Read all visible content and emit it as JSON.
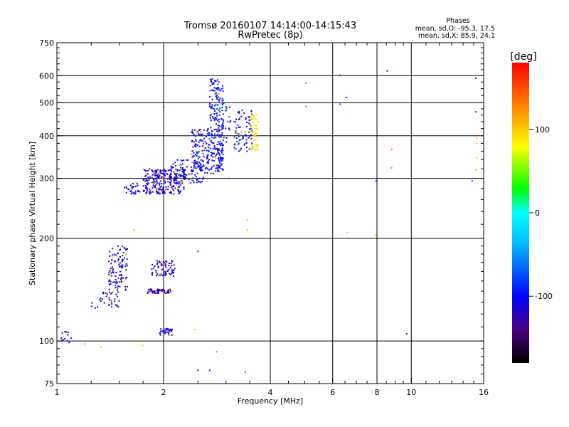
{
  "chart_data": {
    "type": "scatter",
    "title_line1": "Tromsø 20160107 14:14:00-14:15:43",
    "title_line2": "RwPretec (8p)",
    "xlabel": "Frequency [MHz]",
    "ylabel": "Stationary phase Virtual Height [km]",
    "x_scale": "log",
    "y_scale": "log",
    "xlim": [
      1,
      16
    ],
    "ylim": [
      75,
      750
    ],
    "x_ticks": [
      1,
      2,
      4,
      6,
      8,
      10,
      16
    ],
    "x_tick_labels": [
      "1",
      "2",
      "4",
      "6",
      "8",
      "10",
      "16"
    ],
    "y_ticks": [
      75,
      100,
      200,
      300,
      400,
      500,
      600,
      750
    ],
    "y_tick_labels": [
      "75",
      "100",
      "200",
      "300",
      "400",
      "500",
      "600",
      "750"
    ],
    "grid": true,
    "phases_header": "Phases",
    "phases_o": "mean, sd,O: -95.3, 17.5",
    "phases_x": "mean, sd,X:  85.9, 24.1",
    "colorbar": {
      "unit": "[deg]",
      "range": [
        -180,
        180
      ],
      "ticks": [
        100,
        0,
        -100
      ],
      "tick_labels": [
        "100",
        "0",
        "-100"
      ]
    },
    "clusters": [
      {
        "f": [
          1.02,
          1.1
        ],
        "h": [
          97,
          108
        ],
        "phase": -110,
        "n": 12
      },
      {
        "f": [
          1.55,
          1.72
        ],
        "h": [
          270,
          290
        ],
        "phase": -110,
        "n": 30
      },
      {
        "f": [
          1.75,
          2.3
        ],
        "h": [
          270,
          320
        ],
        "phase": -115,
        "n": 260
      },
      {
        "f": [
          2.1,
          2.6
        ],
        "h": [
          290,
          340
        ],
        "phase": -100,
        "n": 90
      },
      {
        "f": [
          2.4,
          2.95
        ],
        "h": [
          310,
          420
        ],
        "phase": -100,
        "n": 260
      },
      {
        "f": [
          2.7,
          2.95
        ],
        "h": [
          420,
          590
        ],
        "phase": -95,
        "n": 110
      },
      {
        "f": [
          2.9,
          3.1
        ],
        "h": [
          380,
          500
        ],
        "phase": -95,
        "n": 25
      },
      {
        "f": [
          3.15,
          3.55
        ],
        "h": [
          360,
          480
        ],
        "phase": -100,
        "n": 80
      },
      {
        "f": [
          3.5,
          3.7
        ],
        "h": [
          360,
          460
        ],
        "phase": 90,
        "n": 55
      },
      {
        "f": [
          1.4,
          1.58
        ],
        "h": [
          140,
          190
        ],
        "phase": -115,
        "n": 110
      },
      {
        "f": [
          1.35,
          1.5
        ],
        "h": [
          125,
          145
        ],
        "phase": -110,
        "n": 30
      },
      {
        "f": [
          1.25,
          1.35
        ],
        "h": [
          125,
          135
        ],
        "phase": -105,
        "n": 8
      },
      {
        "f": [
          1.85,
          2.15
        ],
        "h": [
          155,
          172
        ],
        "phase": -115,
        "n": 70
      },
      {
        "f": [
          1.8,
          2.1
        ],
        "h": [
          138,
          142
        ],
        "phase": -125,
        "n": 55
      },
      {
        "f": [
          1.95,
          2.12
        ],
        "h": [
          104,
          109
        ],
        "phase": -110,
        "n": 30
      }
    ],
    "points": [
      {
        "f": 1.2,
        "h": 98,
        "phase": 110
      },
      {
        "f": 1.33,
        "h": 96,
        "phase": 110
      },
      {
        "f": 1.75,
        "h": 97,
        "phase": 100
      },
      {
        "f": 2.45,
        "h": 108,
        "phase": 100
      },
      {
        "f": 2.5,
        "h": 82,
        "phase": -110
      },
      {
        "f": 2.7,
        "h": 82,
        "phase": -90
      },
      {
        "f": 2.82,
        "h": 93,
        "phase": 150
      },
      {
        "f": 3.4,
        "h": 81,
        "phase": -60
      },
      {
        "f": 2.5,
        "h": 183,
        "phase": -80
      },
      {
        "f": 2.0,
        "h": 485,
        "phase": -100
      },
      {
        "f": 1.65,
        "h": 212,
        "phase": 110
      },
      {
        "f": 3.45,
        "h": 226,
        "phase": 110
      },
      {
        "f": 3.45,
        "h": 212,
        "phase": 100
      },
      {
        "f": 3.05,
        "h": 300,
        "phase": -80
      },
      {
        "f": 5.05,
        "h": 572,
        "phase": -60
      },
      {
        "f": 5.05,
        "h": 487,
        "phase": 150
      },
      {
        "f": 6.3,
        "h": 603,
        "phase": -70
      },
      {
        "f": 6.3,
        "h": 495,
        "phase": -80
      },
      {
        "f": 6.55,
        "h": 518,
        "phase": -110
      },
      {
        "f": 6.6,
        "h": 208,
        "phase": 100
      },
      {
        "f": 7.95,
        "h": 295,
        "phase": -70
      },
      {
        "f": 7.95,
        "h": 205,
        "phase": 110
      },
      {
        "f": 8.55,
        "h": 620,
        "phase": -120
      },
      {
        "f": 8.8,
        "h": 365,
        "phase": 140
      },
      {
        "f": 8.8,
        "h": 322,
        "phase": 130
      },
      {
        "f": 9.7,
        "h": 105,
        "phase": -130
      },
      {
        "f": 14.85,
        "h": 295,
        "phase": -70
      },
      {
        "f": 15.2,
        "h": 590,
        "phase": -110
      },
      {
        "f": 15.2,
        "h": 470,
        "phase": -80
      },
      {
        "f": 15.3,
        "h": 393,
        "phase": 110
      },
      {
        "f": 15.3,
        "h": 380,
        "phase": 110
      },
      {
        "f": 15.3,
        "h": 345,
        "phase": 100
      },
      {
        "f": 15.25,
        "h": 318,
        "phase": 120
      }
    ]
  }
}
